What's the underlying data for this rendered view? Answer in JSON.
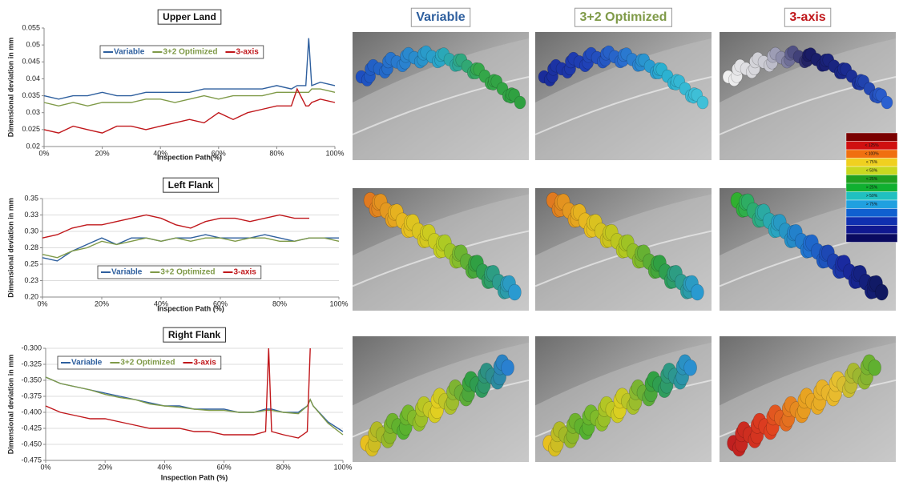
{
  "chart_data": [
    {
      "type": "line",
      "title": "Upper Land",
      "x_label": "Inspection Path(%)",
      "y_label": "Dimensional deviation in mm",
      "x": [
        0,
        5,
        10,
        15,
        20,
        25,
        30,
        35,
        40,
        45,
        50,
        55,
        60,
        65,
        70,
        75,
        80,
        85,
        87,
        90,
        91,
        92,
        95,
        100
      ],
      "series": [
        {
          "name": "Variable",
          "color": "#2e5f9e",
          "values": [
            0.035,
            0.034,
            0.035,
            0.035,
            0.036,
            0.035,
            0.035,
            0.036,
            0.036,
            0.036,
            0.036,
            0.037,
            0.037,
            0.037,
            0.037,
            0.037,
            0.038,
            0.037,
            0.038,
            0.038,
            0.052,
            0.038,
            0.039,
            0.038
          ]
        },
        {
          "name": "3+2 Optimized",
          "color": "#7f9a48",
          "values": [
            0.033,
            0.032,
            0.033,
            0.032,
            0.033,
            0.033,
            0.033,
            0.034,
            0.034,
            0.033,
            0.034,
            0.035,
            0.034,
            0.035,
            0.035,
            0.035,
            0.036,
            0.036,
            0.036,
            0.036,
            0.036,
            0.037,
            0.037,
            0.036
          ]
        },
        {
          "name": "3-axis",
          "color": "#c0171b",
          "values": [
            0.025,
            0.024,
            0.026,
            0.025,
            0.024,
            0.026,
            0.026,
            0.025,
            0.026,
            0.027,
            0.028,
            0.027,
            0.03,
            0.028,
            0.03,
            0.031,
            0.032,
            0.032,
            0.037,
            0.032,
            0.032,
            0.033,
            0.034,
            0.033
          ]
        }
      ],
      "xlim": [
        0,
        100
      ],
      "ylim": [
        0.02,
        0.055
      ],
      "xticks": [
        {
          "value": 0,
          "label": "0%"
        },
        {
          "value": 20,
          "label": "20%"
        },
        {
          "value": 40,
          "label": "40%"
        },
        {
          "value": 60,
          "label": "60%"
        },
        {
          "value": 80,
          "label": "80%"
        },
        {
          "value": 100,
          "label": "100%"
        }
      ],
      "yticks": [
        0.02,
        0.025,
        0.03,
        0.035,
        0.04,
        0.045,
        0.05,
        0.055
      ],
      "grid": false,
      "legend": "top"
    },
    {
      "type": "line",
      "title": "Left Flank",
      "x_label": "Inspection Path (%)",
      "y_label": "Dimensional deviation in mm",
      "x": [
        0,
        5,
        10,
        15,
        20,
        25,
        30,
        35,
        40,
        45,
        50,
        55,
        60,
        65,
        70,
        75,
        80,
        85,
        90,
        95,
        100
      ],
      "series": [
        {
          "name": "Variable",
          "color": "#2e5f9e",
          "values": [
            0.26,
            0.255,
            0.27,
            0.28,
            0.29,
            0.28,
            0.29,
            0.29,
            0.285,
            0.29,
            0.29,
            0.295,
            0.29,
            0.29,
            0.29,
            0.295,
            0.29,
            0.285,
            0.29,
            0.29,
            0.29
          ]
        },
        {
          "name": "3+2 Optimized",
          "color": "#7f9a48",
          "values": [
            0.265,
            0.26,
            0.27,
            0.275,
            0.285,
            0.28,
            0.285,
            0.29,
            0.285,
            0.29,
            0.285,
            0.29,
            0.29,
            0.285,
            0.29,
            0.29,
            0.285,
            0.285,
            0.29,
            0.29,
            0.285
          ]
        },
        {
          "name": "3-axis",
          "color": "#c0171b",
          "values": [
            0.29,
            0.295,
            0.305,
            0.31,
            0.31,
            0.315,
            0.32,
            0.325,
            0.32,
            0.31,
            0.305,
            0.315,
            0.32,
            0.32,
            0.315,
            0.32,
            0.325,
            0.32,
            0.32,
            null,
            null
          ]
        }
      ],
      "xlim": [
        0,
        100
      ],
      "ylim": [
        0.2,
        0.35
      ],
      "xticks": [
        {
          "value": 0,
          "label": "0%"
        },
        {
          "value": 20,
          "label": "20%"
        },
        {
          "value": 40,
          "label": "40%"
        },
        {
          "value": 60,
          "label": "60%"
        },
        {
          "value": 80,
          "label": "80%"
        },
        {
          "value": 100,
          "label": "100%"
        }
      ],
      "yticks": [
        {
          "value": 0.2,
          "label": "0.20"
        },
        {
          "value": 0.225,
          "label": "0.23"
        },
        0.25,
        {
          "value": 0.275,
          "label": "0.28"
        },
        {
          "value": 0.3,
          "label": "0.30"
        },
        {
          "value": 0.325,
          "label": "0.33"
        },
        0.35
      ],
      "grid": true,
      "legend": "bottom"
    },
    {
      "type": "line",
      "title": "Right Flank",
      "x_label": "Inspection Path (%)",
      "y_label": "Dimensional deviation in mm",
      "x": [
        0,
        5,
        10,
        15,
        20,
        25,
        30,
        35,
        40,
        45,
        50,
        55,
        60,
        65,
        70,
        74,
        75,
        76,
        80,
        85,
        88,
        89,
        90,
        95,
        100
      ],
      "series": [
        {
          "name": "Variable",
          "color": "#2e5f9e",
          "values": [
            -0.345,
            -0.355,
            -0.36,
            -0.365,
            -0.37,
            -0.375,
            -0.38,
            -0.385,
            -0.39,
            -0.39,
            -0.395,
            -0.395,
            -0.395,
            -0.4,
            -0.4,
            -0.395,
            -0.395,
            -0.395,
            -0.4,
            -0.4,
            -0.39,
            -0.38,
            -0.39,
            -0.415,
            -0.43
          ]
        },
        {
          "name": "3+2 Optimized",
          "color": "#7f9a48",
          "values": [
            -0.345,
            -0.355,
            -0.36,
            -0.365,
            -0.372,
            -0.377,
            -0.38,
            -0.387,
            -0.39,
            -0.392,
            -0.395,
            -0.397,
            -0.397,
            -0.4,
            -0.4,
            -0.397,
            -0.397,
            -0.397,
            -0.4,
            -0.402,
            -0.39,
            -0.38,
            -0.39,
            -0.417,
            -0.435
          ]
        },
        {
          "name": "3-axis",
          "color": "#c0171b",
          "values": [
            -0.39,
            -0.4,
            -0.405,
            -0.41,
            -0.41,
            -0.415,
            -0.42,
            -0.425,
            -0.425,
            -0.425,
            -0.43,
            -0.43,
            -0.435,
            -0.435,
            -0.435,
            -0.43,
            -0.3,
            -0.43,
            -0.435,
            -0.44,
            -0.43,
            -0.3,
            null,
            null,
            null
          ]
        }
      ],
      "xlim": [
        0,
        100
      ],
      "ylim": [
        -0.475,
        -0.3
      ],
      "xticks": [
        {
          "value": 0,
          "label": "0%"
        },
        {
          "value": 20,
          "label": "20%"
        },
        {
          "value": 40,
          "label": "40%"
        },
        {
          "value": 60,
          "label": "60%"
        },
        {
          "value": 80,
          "label": "80%"
        },
        {
          "value": 100,
          "label": "100%"
        }
      ],
      "yticks": [
        {
          "value": -0.475,
          "label": "-0.475"
        },
        {
          "value": -0.45,
          "label": "-0.450"
        },
        {
          "value": -0.425,
          "label": "-0.425"
        },
        {
          "value": -0.4,
          "label": "-0.400"
        },
        {
          "value": -0.375,
          "label": "-0.375"
        },
        {
          "value": -0.35,
          "label": "-0.350"
        },
        {
          "value": -0.325,
          "label": "-0.325"
        },
        {
          "value": -0.3,
          "label": "-0.300"
        }
      ],
      "grid": true,
      "legend": "top-left"
    }
  ],
  "panel_headers": [
    {
      "text": "Variable",
      "color": "#2e5f9e"
    },
    {
      "text": "3+2 Optimized",
      "color": "#7f9a48"
    },
    {
      "text": "3-axis",
      "color": "#c0171b"
    }
  ],
  "color_scale": {
    "labels": [
      "< 125%",
      "< 100%",
      "< 75%",
      "< 50%",
      "< 25%",
      "> 25%",
      "> 50%",
      "> 75%"
    ]
  }
}
